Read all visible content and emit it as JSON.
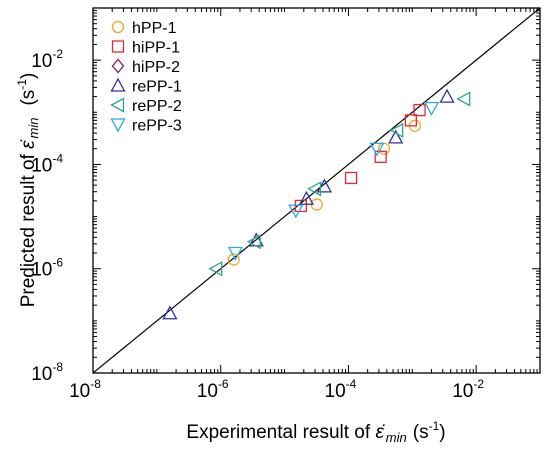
{
  "chart_data": {
    "type": "scatter",
    "xscale": "log",
    "yscale": "log",
    "xlim": [
      1e-08,
      0.1
    ],
    "ylim": [
      1e-08,
      0.1
    ],
    "major_ticks": [
      1e-08,
      1e-06,
      0.0001,
      0.01
    ],
    "tick_labels": [
      {
        "base": "10",
        "exp": "-8"
      },
      {
        "base": "10",
        "exp": "-6"
      },
      {
        "base": "10",
        "exp": "-4"
      },
      {
        "base": "10",
        "exp": "-2"
      }
    ],
    "xlabel": {
      "prefix": "Experimental result of ",
      "symbol": "ε̇",
      "sub": "min",
      "unit_open": "(s",
      "unit_exp": "-1",
      "unit_close": ")"
    },
    "ylabel": {
      "prefix": "Predicted result of ",
      "symbol": "ε̇",
      "sub": "min",
      "unit_open": "(s",
      "unit_exp": "-1",
      "unit_close": ")"
    },
    "reference_line": "y = x",
    "legend_position": "top-left",
    "series": [
      {
        "name": "hPP-1",
        "marker": "circle",
        "color": "#f5a623",
        "points": [
          [
            1.6e-06,
            1.5e-06
          ],
          [
            3.2e-05,
            1.7e-05
          ],
          [
            0.00036,
            0.0002
          ],
          [
            0.0011,
            0.00055
          ]
        ]
      },
      {
        "name": "hiPP-1",
        "marker": "square",
        "color": "#e8282e",
        "points": [
          [
            1.8e-05,
            1.6e-05
          ],
          [
            0.00011,
            5.5e-05
          ],
          [
            0.00032,
            0.00014
          ],
          [
            0.00095,
            0.0007
          ],
          [
            0.0013,
            0.0011
          ]
        ]
      },
      {
        "name": "hiPP-2",
        "marker": "diamond",
        "color": "#8b1a4a",
        "points": []
      },
      {
        "name": "rePP-1",
        "marker": "triangle-up",
        "color": "#2e2e9e",
        "points": [
          [
            1.6e-07,
            1.4e-07
          ],
          [
            3.6e-06,
            3.5e-06
          ],
          [
            2.2e-05,
            2.2e-05
          ],
          [
            4.2e-05,
            3.8e-05
          ],
          [
            0.00055,
            0.00033
          ],
          [
            0.0035,
            0.002
          ]
        ]
      },
      {
        "name": "rePP-2",
        "marker": "triangle-left",
        "color": "#2ba88a",
        "points": [
          [
            8.5e-07,
            1e-06
          ],
          [
            3.4e-06,
            3.3e-06
          ],
          [
            3e-05,
            3.4e-05
          ],
          [
            0.00058,
            0.00045
          ],
          [
            0.0065,
            0.0018
          ]
        ]
      },
      {
        "name": "rePP-3",
        "marker": "triangle-down",
        "color": "#29a9e0",
        "points": [
          [
            1.7e-06,
            2e-06
          ],
          [
            1.5e-05,
            1.3e-05
          ],
          [
            0.00028,
            0.0002
          ],
          [
            0.002,
            0.0012
          ]
        ]
      }
    ]
  }
}
